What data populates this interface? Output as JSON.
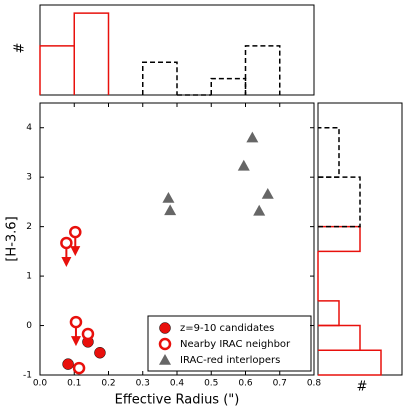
{
  "chart_data": {
    "type": "scatter",
    "xlabel": "Effective Radius (\")",
    "ylabel": "[H-3.6]",
    "xlim": [
      0,
      0.8
    ],
    "ylim": [
      -1,
      4.5
    ],
    "xticks": [
      {
        "value": 0,
        "label": "0.0"
      },
      0.1,
      0.2,
      0.3,
      0.4,
      0.5,
      0.6,
      0.7,
      0.8
    ],
    "yticks": [
      -1,
      0,
      1,
      2,
      3,
      4
    ],
    "legend": "lower right",
    "series": [
      {
        "name": "z=9-10 candidates",
        "color": "#e8100c",
        "marker": "filled-circle",
        "x": [
          0.082,
          0.14,
          0.175
        ],
        "y": [
          -0.78,
          -0.33,
          -0.55
        ]
      },
      {
        "name": "Nearby IRAC neighbor",
        "color": "#e8100c",
        "marker": "open-circle",
        "x": [
          0.077,
          0.103,
          0.105,
          0.14,
          0.114
        ],
        "y": [
          1.67,
          1.89,
          0.07,
          -0.17,
          -0.86
        ],
        "upper_limits": [
          true,
          true,
          true,
          false,
          false
        ]
      },
      {
        "name": "IRAC-red interlopers",
        "color": "#666666",
        "marker": "triangle",
        "x": [
          0.375,
          0.38,
          0.595,
          0.62,
          0.665,
          0.64
        ],
        "y": [
          2.58,
          2.33,
          3.23,
          3.8,
          2.66,
          2.32
        ]
      }
    ],
    "top_histogram": {
      "ylabel": "#",
      "ylim": [
        0,
        5.5
      ],
      "series": [
        {
          "color": "#e8100c",
          "dash": false,
          "bins": [
            0,
            0.1,
            0.2
          ],
          "counts": [
            3,
            5
          ]
        },
        {
          "color": "#000000",
          "dash": true,
          "bins": [
            0.3,
            0.4,
            0.5,
            0.6,
            0.7
          ],
          "counts": [
            2,
            0,
            1,
            3
          ]
        }
      ]
    },
    "right_histogram": {
      "xlabel": "#",
      "xlim": [
        0,
        4
      ],
      "series": [
        {
          "color": "#e8100c",
          "dash": false,
          "bins": [
            -1,
            -0.5,
            0,
            0.5,
            1,
            1.5,
            2
          ],
          "counts": [
            3,
            2,
            1,
            0,
            0,
            2
          ]
        },
        {
          "color": "#000000",
          "dash": true,
          "bins": [
            2,
            3,
            4
          ],
          "counts": [
            2,
            1
          ]
        }
      ]
    }
  }
}
